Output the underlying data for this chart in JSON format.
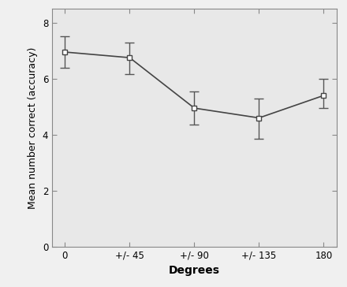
{
  "categories": [
    "0",
    "+/- 45",
    "+/- 90",
    "+/- 135",
    "180"
  ],
  "x_positions": [
    0,
    1,
    2,
    3,
    4
  ],
  "means": [
    6.95,
    6.75,
    4.95,
    4.6,
    5.4
  ],
  "errors_upper": [
    0.55,
    0.55,
    0.6,
    0.7,
    0.6
  ],
  "errors_lower": [
    0.55,
    0.6,
    0.6,
    0.75,
    0.45
  ],
  "xlabel": "Degrees",
  "ylabel": "Mean number correct (accuracy)",
  "ylim": [
    0,
    8.5
  ],
  "yticks": [
    0,
    2,
    4,
    6,
    8
  ],
  "figure_background": "#f0f0f0",
  "axes_background": "#e8e8e8",
  "line_color": "#444444",
  "marker_style": "s",
  "marker_size": 4,
  "marker_facecolor": "white",
  "marker_edgecolor": "#444444",
  "errorbar_color": "#555555",
  "errorbar_capsize": 4,
  "errorbar_linewidth": 1.0,
  "line_linewidth": 1.2,
  "xlabel_fontsize": 10,
  "ylabel_fontsize": 9,
  "tick_fontsize": 8.5,
  "xlabel_fontweight": "bold",
  "spine_color": "#888888",
  "spine_linewidth": 0.8
}
